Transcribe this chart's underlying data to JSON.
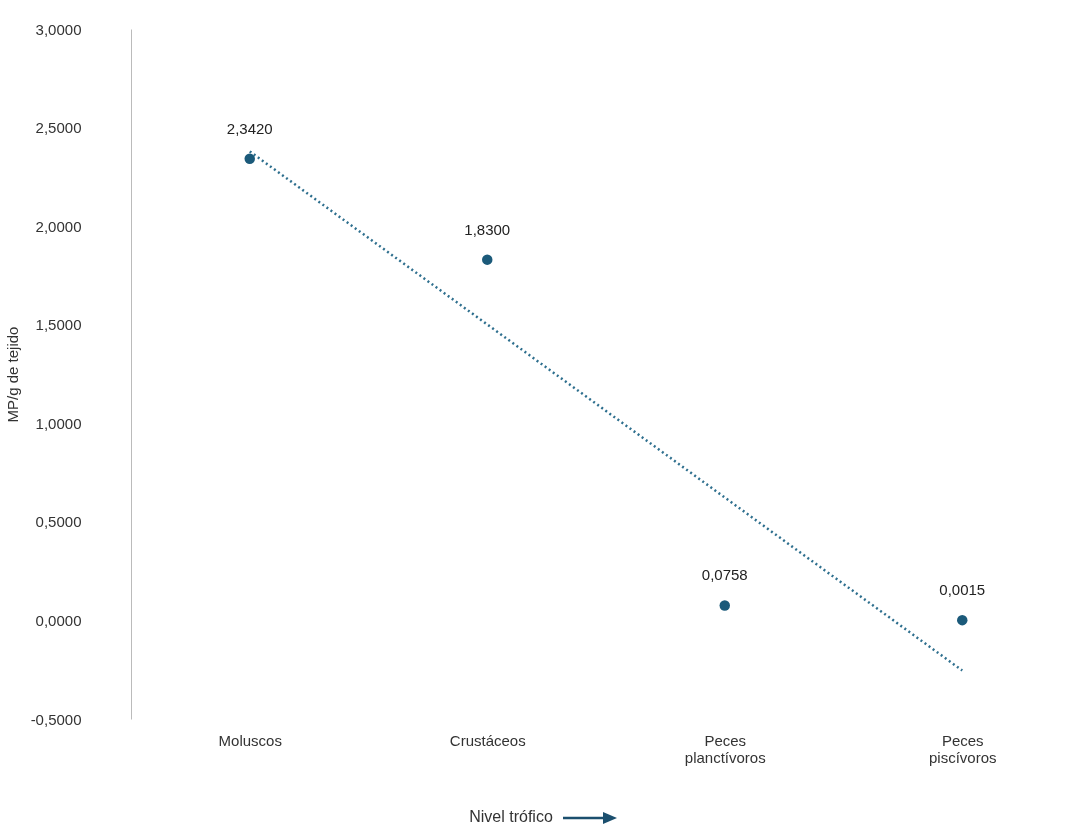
{
  "chart_data": {
    "type": "scatter",
    "xlabel": "Nivel trófico",
    "ylabel": "MP/g de tejido",
    "categories": [
      "Moluscos",
      "Crustáceos",
      "Peces planctívoros",
      "Peces piscívoros"
    ],
    "ylim": [
      -0.5,
      3.0
    ],
    "yticks": [
      {
        "value": -0.5,
        "label": "-0,5000"
      },
      {
        "value": 0,
        "label": "0,0000"
      },
      {
        "value": 0.5,
        "label": "0,5000"
      },
      {
        "value": 1,
        "label": "1,0000"
      },
      {
        "value": 1.5,
        "label": "1,5000"
      },
      {
        "value": 2,
        "label": "2,0000"
      },
      {
        "value": 2.5,
        "label": "2,5000"
      },
      {
        "value": 3,
        "label": "3,0000"
      }
    ],
    "grid": false,
    "series": [
      {
        "color": "#1b5a7a",
        "marker": "circle",
        "values": [
          2.342,
          1.83,
          0.0758,
          0.0015
        ],
        "value_labels": [
          "2,3420",
          "1,8300",
          "0,0758",
          "0,0015"
        ]
      },
      {
        "type": "line",
        "color": "#2e6f8e",
        "line_style": "dotted",
        "marker": "none",
        "x": [
          "Moluscos",
          "Peces piscívoros"
        ],
        "values": [
          2.379,
          -0.254
        ]
      }
    ]
  }
}
